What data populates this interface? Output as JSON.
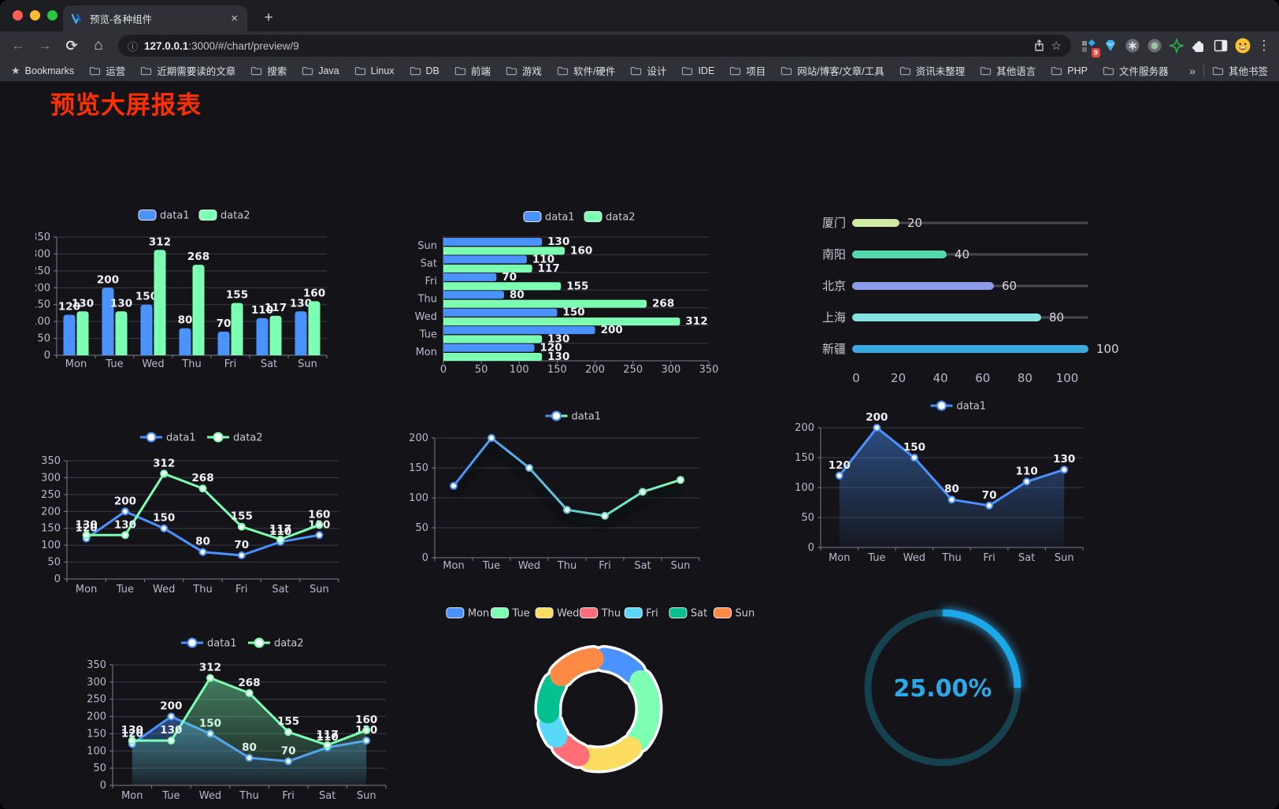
{
  "browser": {
    "traffic_lights": [
      "#ff5f57",
      "#febc2e",
      "#28c840"
    ],
    "tab": {
      "title": "预览-各种组件"
    },
    "url": {
      "host": "127.0.0.1",
      "rest": ":3000/#/chart/preview/9"
    },
    "extension_badge": "9",
    "bookmarks_bar": {
      "first_item": "Bookmarks",
      "folders": [
        "运营",
        "近期需要读的文章",
        "搜索",
        "Java",
        "Linux",
        "DB",
        "前端",
        "游戏",
        "软件/硬件",
        "设计",
        "IDE",
        "项目",
        "网站/博客/文章/工具",
        "资讯未整理",
        "其他语言",
        "PHP",
        "文件服务器"
      ],
      "overflow": "»",
      "other_bookmarks": "其他书签"
    },
    "icons": {
      "back": "←",
      "forward": "→",
      "reload": "⟳",
      "home": "⌂",
      "info": "ⓘ",
      "star_filled": "★",
      "star_outline": "☆",
      "plus": "+",
      "close": "×",
      "kebab": "⋮"
    }
  },
  "page": {
    "title": "预览大屏报表",
    "title_color": "#ff2f00",
    "background": "#141418"
  },
  "palette": {
    "text": "#b9b8ce",
    "value_label": "#f0f1f5",
    "grid": "#3a3a47",
    "axis": "#7d7d8e"
  },
  "chart_data": [
    {
      "id": "bar-grouped",
      "type": "bar",
      "categories": [
        "Mon",
        "Tue",
        "Wed",
        "Thu",
        "Fri",
        "Sat",
        "Sun"
      ],
      "series": [
        {
          "name": "data1",
          "color": "#4992ff",
          "values": [
            120,
            200,
            150,
            80,
            70,
            110,
            130
          ]
        },
        {
          "name": "data2",
          "color": "#7cffb2",
          "values": [
            130,
            130,
            312,
            268,
            155,
            117,
            160
          ]
        }
      ],
      "ylim": [
        0,
        350
      ],
      "ystep": 50,
      "value_labels": true,
      "legend_position": "top",
      "grid": true
    },
    {
      "id": "bar-horizontal",
      "type": "bar-horizontal",
      "categories": [
        "Mon",
        "Tue",
        "Wed",
        "Thu",
        "Fri",
        "Sat",
        "Sun"
      ],
      "series": [
        {
          "name": "data1",
          "color": "#4992ff",
          "values": [
            120,
            200,
            150,
            80,
            70,
            110,
            130
          ]
        },
        {
          "name": "data2",
          "color": "#7cffb2",
          "values": [
            130,
            130,
            312,
            268,
            155,
            117,
            160
          ]
        }
      ],
      "xlim": [
        0,
        350
      ],
      "xstep": 50,
      "value_labels": true,
      "legend_position": "top"
    },
    {
      "id": "progress",
      "type": "progress-bar",
      "items": [
        {
          "label": "厦门",
          "value": 20,
          "color": "#cdeba5"
        },
        {
          "label": "南阳",
          "value": 40,
          "color": "#56d7ab"
        },
        {
          "label": "北京",
          "value": 60,
          "color": "#8e9ae8"
        },
        {
          "label": "上海",
          "value": 80,
          "color": "#84e4e2"
        },
        {
          "label": "新疆",
          "value": 100,
          "color": "#3ba8de"
        }
      ],
      "xlim": [
        0,
        100
      ],
      "xticks": [
        0,
        20,
        40,
        60,
        80,
        100
      ]
    },
    {
      "id": "line-two",
      "type": "line",
      "categories": [
        "Mon",
        "Tue",
        "Wed",
        "Thu",
        "Fri",
        "Sat",
        "Sun"
      ],
      "series": [
        {
          "name": "data1",
          "color": "#4992ff",
          "values": [
            120,
            200,
            150,
            80,
            70,
            110,
            130
          ]
        },
        {
          "name": "data2",
          "color": "#7cffb2",
          "values": [
            130,
            130,
            312,
            268,
            155,
            117,
            160
          ]
        }
      ],
      "ylim": [
        0,
        350
      ],
      "ystep": 50,
      "value_labels": true,
      "legend_position": "top"
    },
    {
      "id": "line-gradient",
      "type": "line",
      "categories": [
        "Mon",
        "Tue",
        "Wed",
        "Thu",
        "Fri",
        "Sat",
        "Sun"
      ],
      "series": [
        {
          "name": "data1",
          "gradient": [
            "#4992ff",
            "#7cffb2"
          ],
          "values": [
            120,
            200,
            150,
            80,
            70,
            110,
            130
          ],
          "shadow": true
        }
      ],
      "ylim": [
        0,
        200
      ],
      "ystep": 50,
      "value_labels": false,
      "legend_position": "top"
    },
    {
      "id": "line-area-blue",
      "type": "line",
      "categories": [
        "Mon",
        "Tue",
        "Wed",
        "Thu",
        "Fri",
        "Sat",
        "Sun"
      ],
      "series": [
        {
          "name": "data1",
          "color": "#4992ff",
          "values": [
            120,
            200,
            150,
            80,
            70,
            110,
            130
          ],
          "area": true
        }
      ],
      "ylim": [
        0,
        200
      ],
      "ystep": 50,
      "value_labels": true,
      "legend_position": "top"
    },
    {
      "id": "line-area-two",
      "type": "line",
      "categories": [
        "Mon",
        "Tue",
        "Wed",
        "Thu",
        "Fri",
        "Sat",
        "Sun"
      ],
      "series": [
        {
          "name": "data1",
          "color": "#4992ff",
          "values": [
            120,
            200,
            150,
            80,
            70,
            110,
            130
          ],
          "area": true
        },
        {
          "name": "data2",
          "color": "#7cffb2",
          "values": [
            130,
            130,
            312,
            268,
            155,
            117,
            160
          ],
          "area": true
        }
      ],
      "ylim": [
        0,
        350
      ],
      "ystep": 50,
      "value_labels": true,
      "legend_position": "top"
    },
    {
      "id": "pie-days",
      "type": "pie",
      "categories": [
        "Mon",
        "Tue",
        "Wed",
        "Thu",
        "Fri",
        "Sat",
        "Sun"
      ],
      "values": [
        120,
        200,
        150,
        80,
        70,
        110,
        130
      ],
      "colors": [
        "#4992ff",
        "#7cffb2",
        "#fddd60",
        "#ff6e76",
        "#58d9f9",
        "#05c091",
        "#ff8a45"
      ],
      "donut": true,
      "legend_position": "top"
    },
    {
      "id": "gauge-percent",
      "type": "gauge",
      "value": 25,
      "display": "25.00%",
      "color": "#1aa8e8",
      "track_color": "#16414f",
      "text_color": "#2aa9e9"
    }
  ]
}
